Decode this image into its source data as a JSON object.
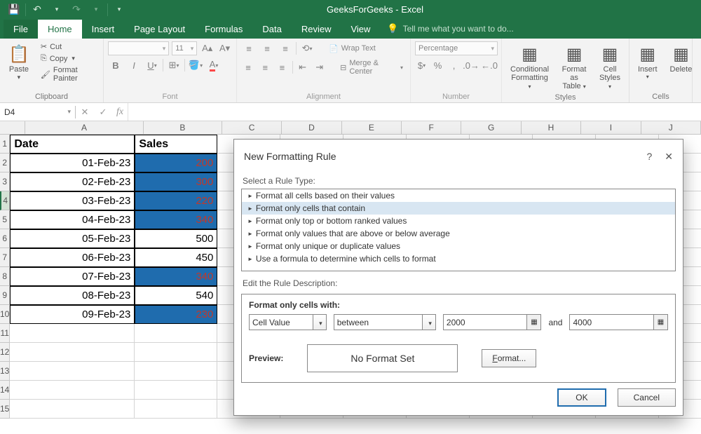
{
  "titlebar": {
    "title": "GeeksForGeeks - Excel"
  },
  "ribbon": {
    "tabs": [
      "File",
      "Home",
      "Insert",
      "Page Layout",
      "Formulas",
      "Data",
      "Review",
      "View"
    ],
    "active_tab": "Home",
    "tellme": "Tell me what you want to do...",
    "clipboard": {
      "paste": "Paste",
      "cut": "Cut",
      "copy": "Copy",
      "painter": "Format Painter",
      "label": "Clipboard"
    },
    "font": {
      "family": "",
      "size": "11",
      "label": "Font"
    },
    "alignment": {
      "wrap": "Wrap Text",
      "merge": "Merge & Center",
      "label": "Alignment"
    },
    "number": {
      "format": "Percentage",
      "label": "Number"
    },
    "styles": {
      "cond": "Conditional\nFormatting",
      "table": "Format as\nTable",
      "cell": "Cell\nStyles",
      "label": "Styles"
    },
    "cells": {
      "insert": "Insert",
      "delete": "Delete",
      "label": "Cells"
    }
  },
  "namebox": "D4",
  "sheet": {
    "headers": {
      "A": "Date",
      "B": "Sales"
    },
    "rows": [
      {
        "r": 2,
        "date": "01-Feb-23",
        "sales": "200",
        "hl": true
      },
      {
        "r": 3,
        "date": "02-Feb-23",
        "sales": "300",
        "hl": true
      },
      {
        "r": 4,
        "date": "03-Feb-23",
        "sales": "220",
        "hl": true
      },
      {
        "r": 5,
        "date": "04-Feb-23",
        "sales": "340",
        "hl": true
      },
      {
        "r": 6,
        "date": "05-Feb-23",
        "sales": "500",
        "hl": false
      },
      {
        "r": 7,
        "date": "06-Feb-23",
        "sales": "450",
        "hl": false
      },
      {
        "r": 8,
        "date": "07-Feb-23",
        "sales": "340",
        "hl": true
      },
      {
        "r": 9,
        "date": "08-Feb-23",
        "sales": "540",
        "hl": false
      },
      {
        "r": 10,
        "date": "09-Feb-23",
        "sales": "230",
        "hl": true
      }
    ],
    "selected_row": 4,
    "colors": {
      "highlight_bg": "#1f6cae",
      "highlight_fg": "#c0392b"
    }
  },
  "dialog": {
    "title": "New Formatting Rule",
    "section_rule_type": "Select a Rule Type:",
    "rule_types": [
      "Format all cells based on their values",
      "Format only cells that contain",
      "Format only top or bottom ranked values",
      "Format only values that are above or below average",
      "Format only unique or duplicate values",
      "Use a formula to determine which cells to format"
    ],
    "selected_rule_index": 1,
    "section_desc": "Edit the Rule Description:",
    "desc_title": "Format only cells with:",
    "cond_type": "Cell Value",
    "cond_op": "between",
    "cond_val1": "2000",
    "cond_and": "and",
    "cond_val2": "4000",
    "preview_label": "Preview:",
    "preview_text": "No Format Set",
    "format_btn": "Format...",
    "ok": "OK",
    "cancel": "Cancel"
  }
}
